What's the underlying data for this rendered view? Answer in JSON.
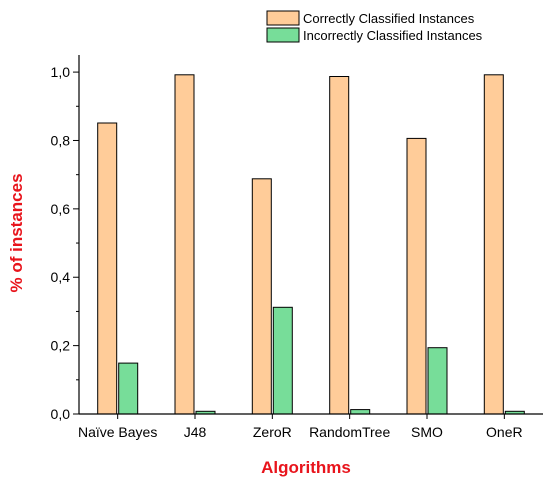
{
  "chart_data": {
    "type": "bar",
    "title": "",
    "xlabel": "Algorithms",
    "ylabel": "% of instances",
    "categories": [
      "Naïve Bayes",
      "J48",
      "ZeroR",
      "RandomTree",
      "SMO",
      "OneR"
    ],
    "series": [
      {
        "name": "Correctly Classified Instances",
        "values": [
          0.851,
          0.992,
          0.688,
          0.987,
          0.806,
          0.992
        ],
        "color": "#FFCC99"
      },
      {
        "name": "Incorrectly Classified Instances",
        "values": [
          0.149,
          0.008,
          0.312,
          0.013,
          0.194,
          0.008
        ],
        "color": "#77DD99"
      }
    ],
    "ylim": [
      0,
      1.05
    ],
    "yticks": [
      "0,0",
      "0,2",
      "0,4",
      "0,6",
      "0,8",
      "1,0"
    ],
    "ytick_values": [
      0,
      0.2,
      0.4,
      0.6,
      0.8,
      1.0
    ],
    "grid": false,
    "legend_position": "top-right",
    "axis_title_color": "#E8141C"
  }
}
